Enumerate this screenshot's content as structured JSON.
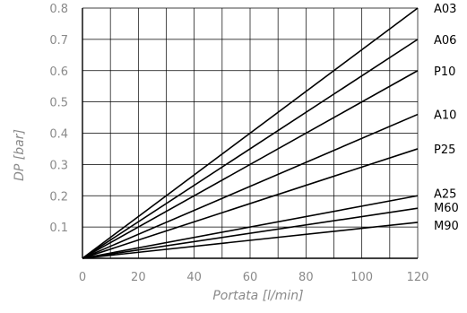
{
  "chart_data": {
    "type": "line",
    "xlabel": "Portata  [l/min]",
    "ylabel": "DP  [bar]",
    "xlim": [
      0,
      120
    ],
    "ylim": [
      0,
      0.8
    ],
    "x_ticks": [
      0,
      20,
      40,
      60,
      80,
      100,
      120
    ],
    "x_tick_labels": [
      "0",
      "20",
      "40",
      "60",
      "80",
      "100",
      "120"
    ],
    "y_ticks": [
      0.1,
      0.2,
      0.3,
      0.4,
      0.5,
      0.6,
      0.7,
      0.8
    ],
    "y_tick_labels": [
      "0.1",
      "0.2",
      "0.3",
      "0.4",
      "0.5",
      "0.6",
      "0.7",
      "0.8"
    ],
    "grid": true,
    "series": [
      {
        "name": "A03",
        "x": [
          0,
          120
        ],
        "y": [
          0,
          0.8
        ]
      },
      {
        "name": "A06",
        "x": [
          0,
          120
        ],
        "y": [
          0,
          0.7
        ]
      },
      {
        "name": "P10",
        "x": [
          0,
          120
        ],
        "y": [
          0,
          0.6
        ]
      },
      {
        "name": "A10",
        "x": [
          0,
          120
        ],
        "y": [
          0,
          0.46
        ]
      },
      {
        "name": "P25",
        "x": [
          0,
          120
        ],
        "y": [
          0,
          0.35
        ]
      },
      {
        "name": "A25",
        "x": [
          0,
          120
        ],
        "y": [
          0,
          0.2
        ]
      },
      {
        "name": "M60",
        "x": [
          0,
          120
        ],
        "y": [
          0,
          0.16
        ]
      },
      {
        "name": "M90",
        "x": [
          0,
          120
        ],
        "y": [
          0,
          0.115
        ]
      }
    ]
  }
}
